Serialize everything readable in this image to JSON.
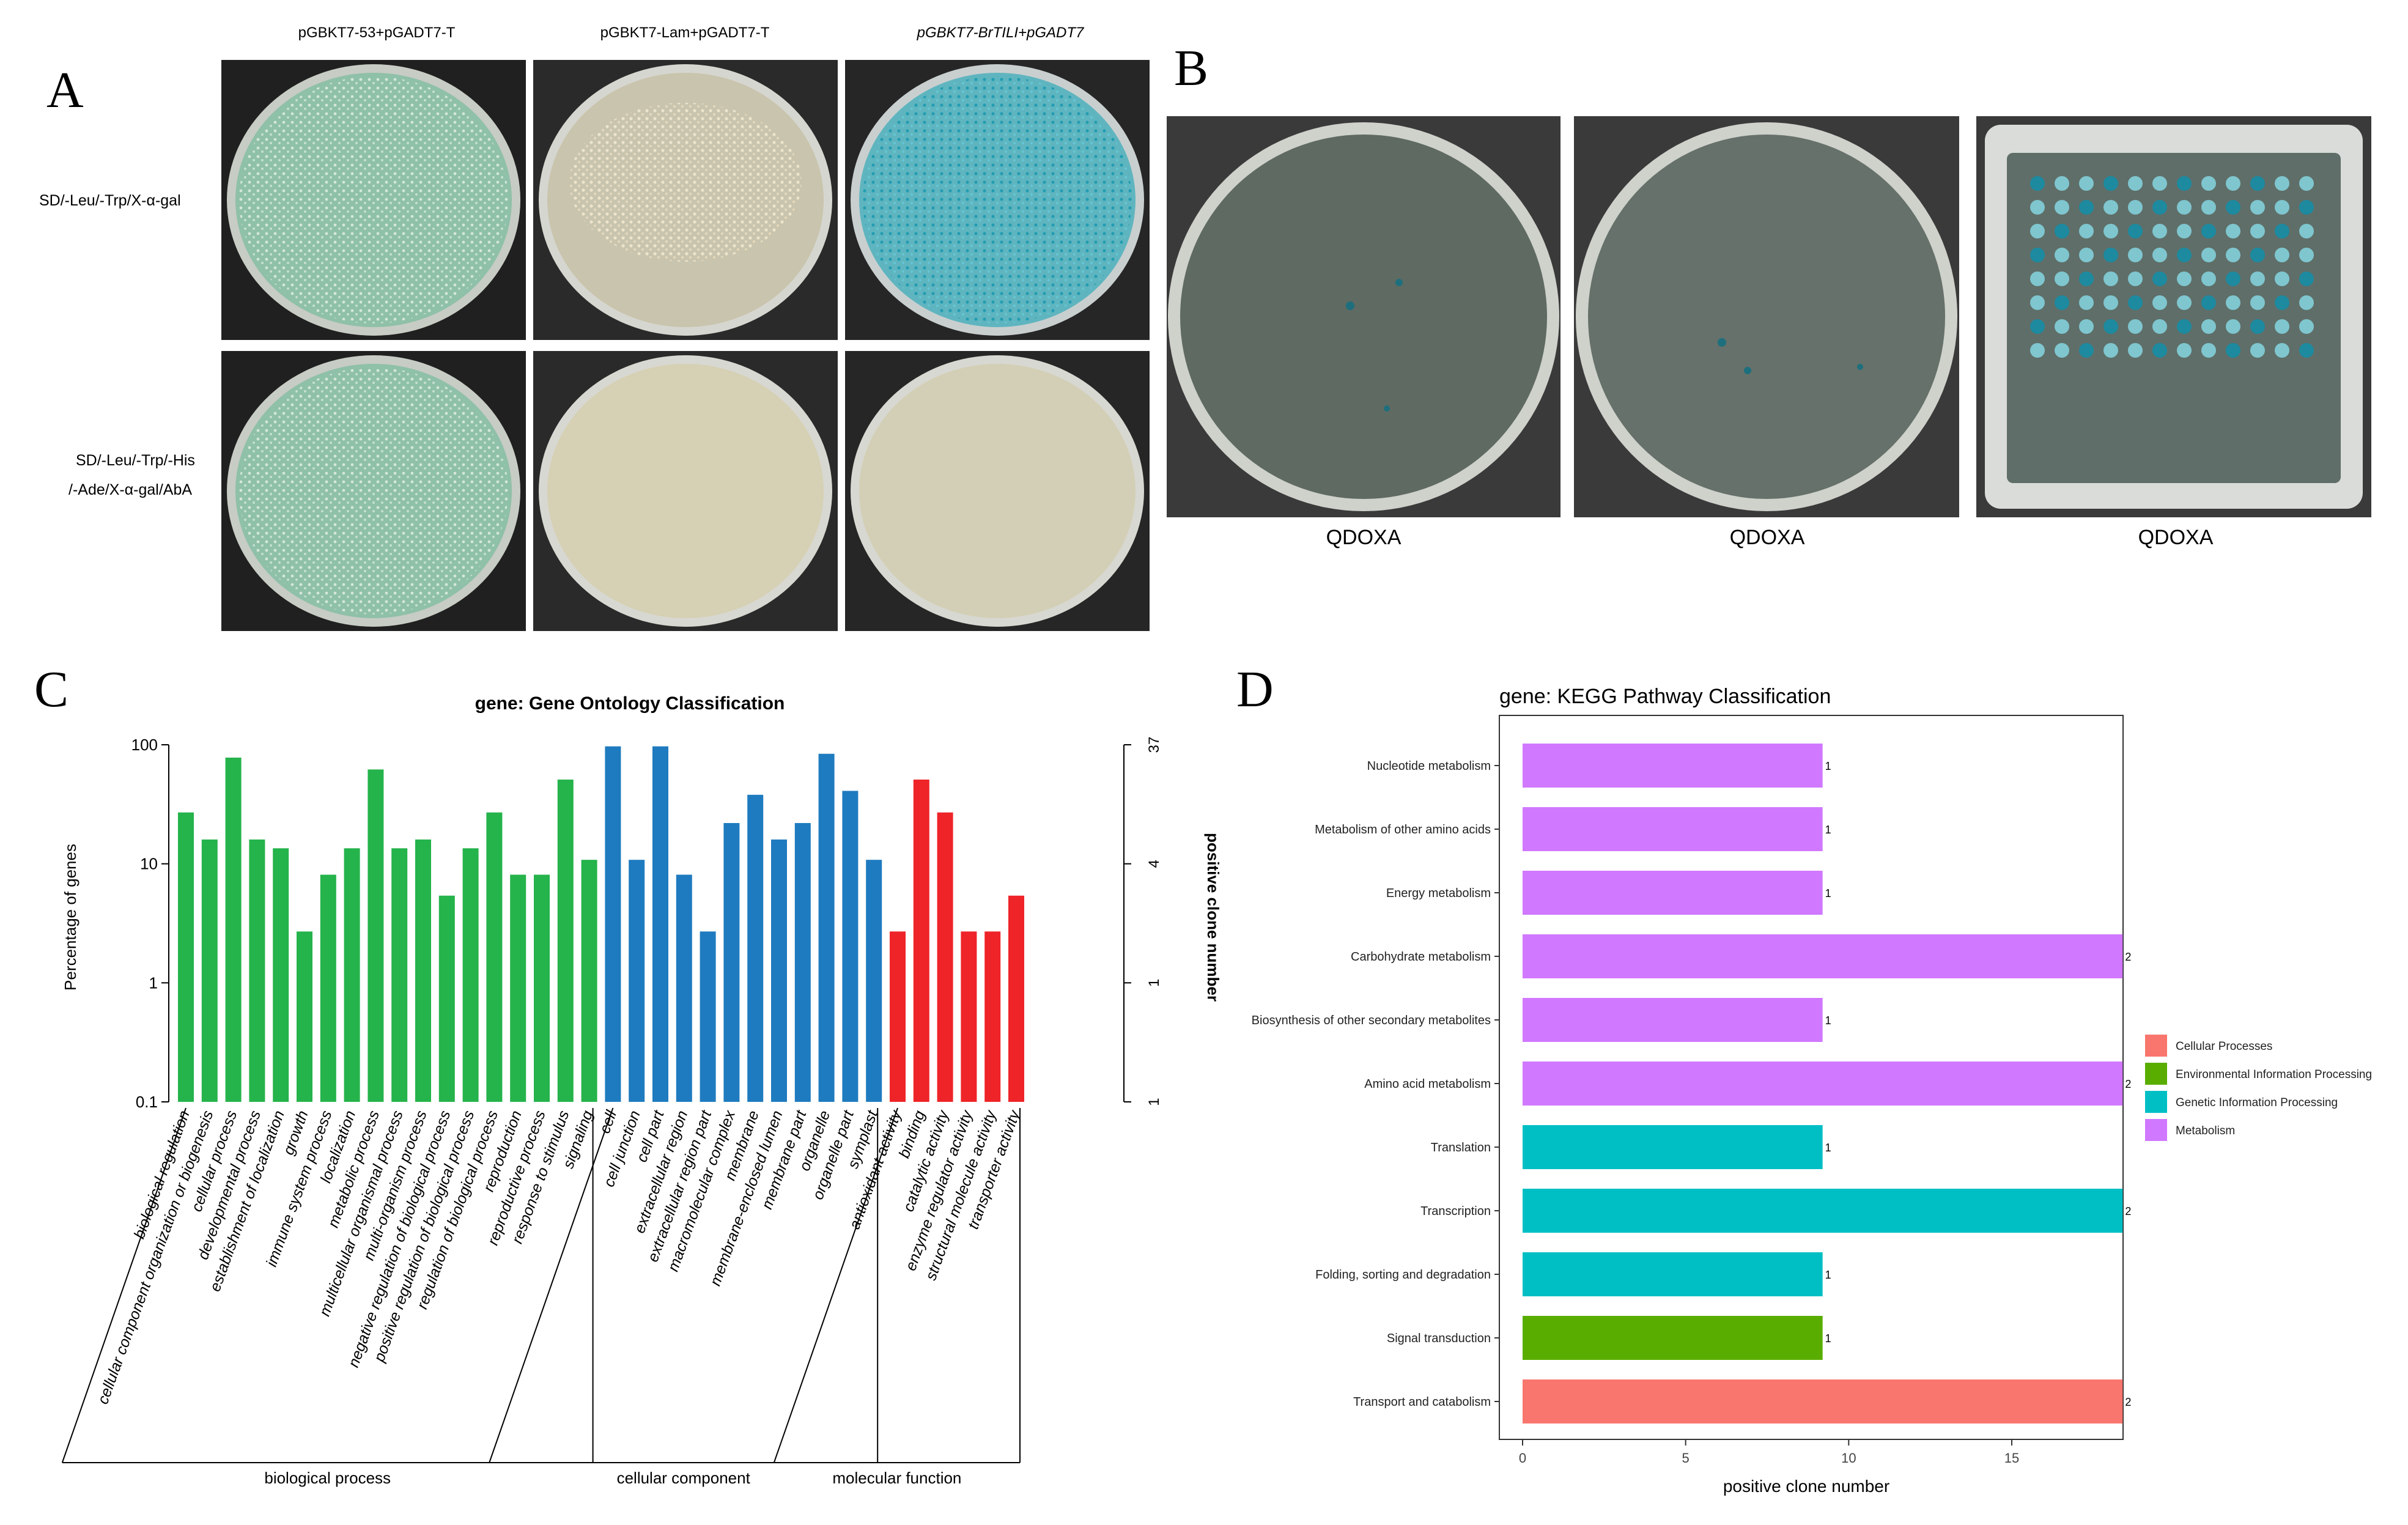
{
  "panel_a": {
    "letter": "A",
    "columns": [
      "pGBKT7-53+pGADT7-T",
      "pGBKT7-Lam+pGADT7-T",
      "pGBKT7-BrTILI+pGADT7"
    ],
    "rows": [
      "SD/-Leu/-Trp/X-α-gal",
      "SD/-Leu/-Trp/-His",
      "/-Ade/X-α-gal/AbA"
    ]
  },
  "panel_b": {
    "letter": "B",
    "labels": [
      "QDOXA",
      "QDOXA",
      "QDOXA"
    ]
  },
  "panel_c": {
    "letter": "C",
    "group_labels": [
      "biological process",
      "cellular component",
      "molecular function"
    ]
  },
  "panel_d": {
    "letter": "D"
  },
  "chart_data": [
    {
      "type": "bar",
      "title": "gene: Gene Ontology Classification",
      "ylabel": "Percentage of genes",
      "y2label": "positive clone number",
      "yscale": "log",
      "ylim": [
        0.1,
        100
      ],
      "yticks": [
        "100",
        "10",
        "1",
        "0.1"
      ],
      "y2ticks": [
        "37",
        "4",
        "1",
        "1"
      ],
      "categories": [
        "biological regulation",
        "cellular component organization or biogenesis",
        "cellular process",
        "developmental process",
        "establishment of localization",
        "growth",
        "immune system process",
        "localization",
        "metabolic process",
        "multicellular organismal process",
        "multi-organism process",
        "negative regulation of biological process",
        "positive regulation of biological process",
        "regulation of biological process",
        "reproduction",
        "reproductive process",
        "response to stimulus",
        "signaling",
        "cell",
        "cell junction",
        "cell part",
        "extracellular region",
        "extracellular region part",
        "macromolecular complex",
        "membrane",
        "membrane-enclosed lumen",
        "membrane part",
        "organelle",
        "organelle part",
        "symplast",
        "antioxidant activity",
        "binding",
        "catalytic activity",
        "enzyme regulator activity",
        "structural molecule activity",
        "transporter activity"
      ],
      "values": [
        27,
        16,
        78,
        16,
        13.5,
        2.7,
        8.1,
        13.5,
        62,
        13.5,
        16,
        5.4,
        13.5,
        27,
        8.1,
        8.1,
        51,
        10.8,
        97,
        10.8,
        97,
        8.1,
        2.7,
        22,
        38,
        16,
        22,
        84,
        41,
        10.8,
        2.7,
        51,
        27,
        2.7,
        2.7,
        5.4
      ],
      "groups": [
        "biological process",
        "biological process",
        "biological process",
        "biological process",
        "biological process",
        "biological process",
        "biological process",
        "biological process",
        "biological process",
        "biological process",
        "biological process",
        "biological process",
        "biological process",
        "biological process",
        "biological process",
        "biological process",
        "biological process",
        "biological process",
        "cellular component",
        "cellular component",
        "cellular component",
        "cellular component",
        "cellular component",
        "cellular component",
        "cellular component",
        "cellular component",
        "cellular component",
        "cellular component",
        "cellular component",
        "cellular component",
        "molecular function",
        "molecular function",
        "molecular function",
        "molecular function",
        "molecular function",
        "molecular function"
      ],
      "group_colors": {
        "biological process": "#25b34b",
        "cellular component": "#1f7bbf",
        "molecular function": "#ee2428"
      }
    },
    {
      "type": "bar",
      "orientation": "horizontal",
      "title": "gene: KEGG Pathway Classification",
      "xlabel": "positive clone number",
      "xticks": [
        "0",
        "5",
        "10",
        "15"
      ],
      "xlim": [
        0,
        19.5
      ],
      "categories": [
        "Nucleotide metabolism",
        "Metabolism of other amino acids",
        "Energy metabolism",
        "Carbohydrate metabolism",
        "Biosynthesis of other secondary metabolites",
        "Amino acid metabolism",
        "Translation",
        "Transcription",
        "Folding, sorting and degradation",
        "Signal transduction",
        "Transport and catabolism"
      ],
      "values": [
        1,
        1,
        1,
        2,
        1,
        2,
        1,
        2,
        1,
        1,
        2
      ],
      "bar_labels": [
        "1",
        "1",
        "1",
        "2",
        "1",
        "2",
        "1",
        "2",
        "1",
        "1",
        "2"
      ],
      "classes": [
        "Metabolism",
        "Metabolism",
        "Metabolism",
        "Metabolism",
        "Metabolism",
        "Metabolism",
        "Genetic Information Processing",
        "Genetic Information Processing",
        "Genetic Information Processing",
        "Environmental Information Processing",
        "Cellular Processes"
      ],
      "legend": [
        "Cellular Processes",
        "Environmental Information Processing",
        "Genetic Information Processing",
        "Metabolism"
      ],
      "legend_colors": [
        "#f8766d",
        "#59ad00",
        "#00bfc4",
        "#d078ff"
      ],
      "legend_position": "right"
    }
  ]
}
